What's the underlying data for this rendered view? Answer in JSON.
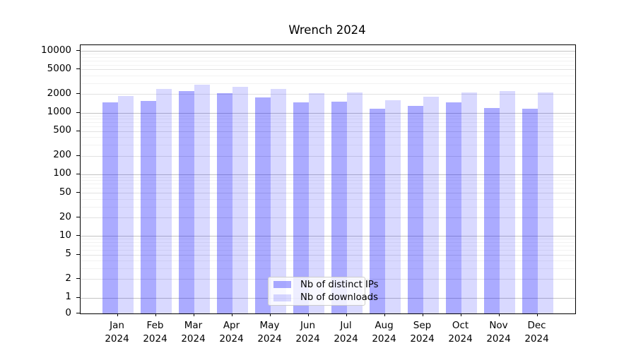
{
  "chart_data": {
    "type": "bar",
    "title": "Wrench 2024",
    "categories": [
      "Jan 2024",
      "Feb 2024",
      "Mar 2024",
      "Apr 2024",
      "May 2024",
      "Jun 2024",
      "Jul 2024",
      "Aug 2024",
      "Sep 2024",
      "Oct 2024",
      "Nov 2024",
      "Dec 2024"
    ],
    "months": [
      "Jan",
      "Feb",
      "Mar",
      "Apr",
      "May",
      "Jun",
      "Jul",
      "Aug",
      "Sep",
      "Oct",
      "Nov",
      "Dec"
    ],
    "year_label": "2024",
    "series": [
      {
        "name": "Nb of distinct IPs",
        "color": "rgba(0,0,255,0.33)",
        "values": [
          1450,
          1550,
          2250,
          2050,
          1750,
          1450,
          1500,
          1150,
          1300,
          1450,
          1200,
          1150
        ]
      },
      {
        "name": "Nb of downloads",
        "color": "rgba(0,0,255,0.15)",
        "values": [
          1850,
          2400,
          2800,
          2600,
          2400,
          2050,
          2100,
          1600,
          1800,
          2100,
          2250,
          2100
        ]
      }
    ],
    "y_scale": "symlog",
    "y_ticks": [
      0,
      1,
      2,
      5,
      10,
      20,
      50,
      100,
      200,
      500,
      1000,
      2000,
      5000,
      10000
    ],
    "ylim": [
      0,
      12400
    ],
    "xlabel": "",
    "ylabel": "",
    "grid": "both",
    "legend_position": "lower center"
  },
  "colors": {
    "bar_distinct_ips": "rgba(0,0,255,0.33)",
    "bar_downloads": "rgba(0,0,255,0.15)",
    "grid_decade": "#c3c3c3",
    "grid_mid": "#e2e2e2",
    "grid_minor": "#f2f2f2",
    "spine": "#000000",
    "legend_border": "#cccccc",
    "background": "#ffffff"
  }
}
